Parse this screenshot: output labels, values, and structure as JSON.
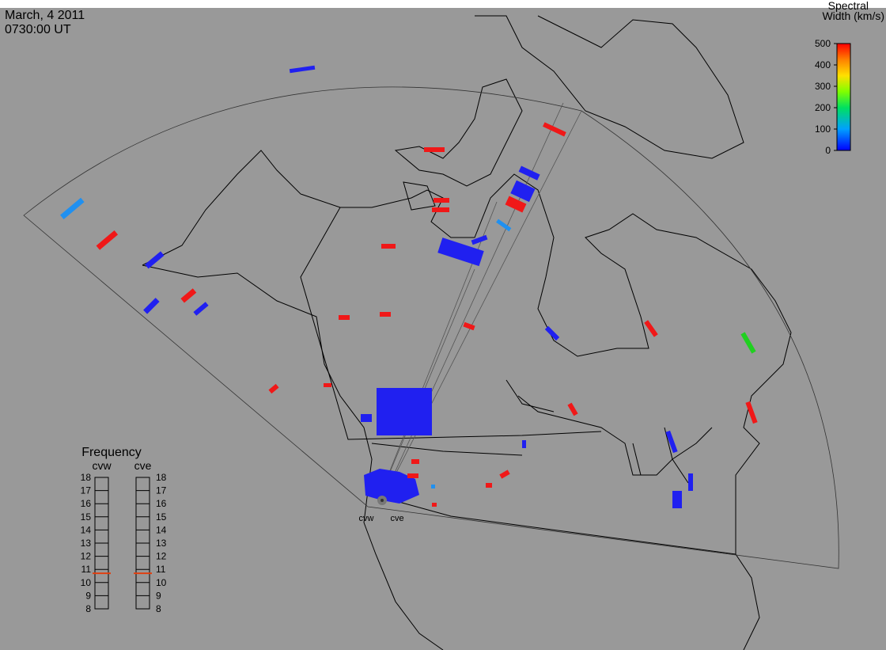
{
  "header": {
    "date": "March, 4 2011",
    "time": "0730:00 UT"
  },
  "colorbar": {
    "title": [
      "Spectral",
      "Width (km/s)"
    ],
    "lim": [
      0,
      500
    ],
    "ticks": [
      0,
      100,
      200,
      300,
      400,
      500
    ]
  },
  "frequency": {
    "title": "Frequency",
    "lim": [
      8,
      18
    ],
    "ticks": [
      8,
      9,
      10,
      11,
      12,
      13,
      14,
      15,
      16,
      17,
      18
    ],
    "radars": [
      {
        "name": "cvw",
        "value": 10.7
      },
      {
        "name": "cve",
        "value": 10.7
      }
    ]
  }
}
